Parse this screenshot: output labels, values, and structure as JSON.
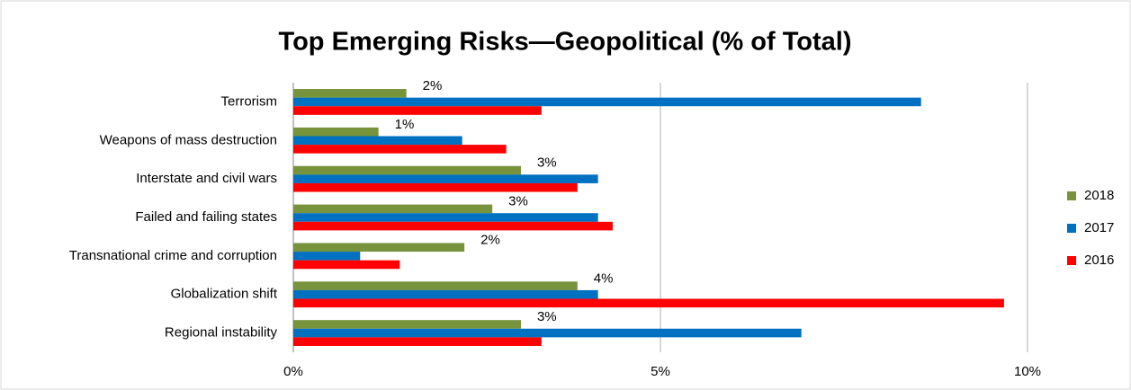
{
  "chart_data": {
    "type": "hbar",
    "title": "Top Emerging Risks—Geopolitical (% of Total)",
    "categories": [
      "Terrorism",
      "Weapons of mass destruction",
      "Interstate and civil wars",
      "Failed and failing states",
      "Transnational crime and corruption",
      "Globalization shift",
      "Regional instability"
    ],
    "series": [
      {
        "name": "2018",
        "color": "#77933c",
        "values": [
          1.54,
          1.16,
          3.1,
          2.71,
          2.33,
          3.87,
          3.1
        ],
        "value_labels": [
          "2%",
          "1%",
          "3%",
          "3%",
          "2%",
          "4%",
          "3%"
        ]
      },
      {
        "name": "2017",
        "color": "#0070c0",
        "values": [
          8.55,
          2.3,
          4.15,
          4.15,
          0.91,
          4.15,
          6.92
        ]
      },
      {
        "name": "2016",
        "color": "#ff0000",
        "values": [
          3.38,
          2.9,
          3.87,
          4.35,
          1.45,
          9.68,
          3.38
        ]
      }
    ],
    "xlim": [
      0,
      10
    ],
    "xticks": [
      {
        "value": 0,
        "label": "0%"
      },
      {
        "value": 5,
        "label": "5%"
      },
      {
        "value": 10,
        "label": "10%"
      }
    ],
    "grid": true,
    "legend": "right"
  }
}
